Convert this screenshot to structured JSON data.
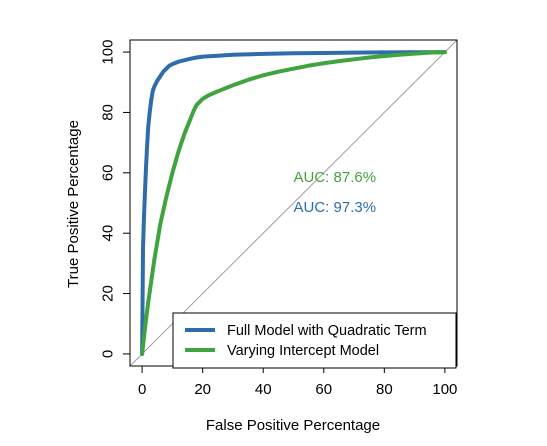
{
  "chart_data": {
    "type": "line",
    "title": "",
    "xlabel": "False Positive Percentage",
    "ylabel": "True Positive Percentage",
    "xlim": [
      -4,
      104
    ],
    "ylim": [
      -4,
      104
    ],
    "xticks": [
      0,
      20,
      40,
      60,
      80,
      100
    ],
    "yticks": [
      0,
      20,
      40,
      60,
      80,
      100
    ],
    "grid": false,
    "legend_position": "bottom-right",
    "reference_line": {
      "x": [
        0,
        100
      ],
      "y": [
        0,
        100
      ],
      "color": "#a0a0a0"
    },
    "series": [
      {
        "name": "Full Model with Quadratic Term",
        "color": "#2e6cab",
        "auc_label": "AUC: 97.3%",
        "auc_pos": [
          50,
          47
        ],
        "x": [
          0,
          0.3,
          0.6,
          1,
          1.3,
          1.6,
          2,
          2.5,
          3,
          3.5,
          4,
          5,
          6,
          7,
          8,
          9,
          10,
          12,
          14,
          16,
          18,
          20,
          25,
          30,
          40,
          50,
          60,
          70,
          80,
          90,
          100
        ],
        "y": [
          0,
          35,
          45,
          55,
          62,
          68,
          75,
          80,
          84,
          87,
          88.5,
          90.5,
          92,
          93.5,
          94.5,
          95.5,
          96,
          96.8,
          97.3,
          97.8,
          98.2,
          98.5,
          98.8,
          99.1,
          99.4,
          99.6,
          99.7,
          99.8,
          99.9,
          99.95,
          100
        ]
      },
      {
        "name": "Varying Intercept Model",
        "color": "#3fa33f",
        "auc_label": "AUC: 87.6%",
        "auc_pos": [
          50,
          57
        ],
        "x": [
          0,
          1,
          2,
          3,
          4,
          5,
          6,
          8,
          10,
          12,
          14,
          16,
          17,
          18,
          20,
          22,
          25,
          30,
          35,
          40,
          45,
          50,
          55,
          60,
          65,
          70,
          75,
          80,
          85,
          90,
          95,
          100
        ],
        "y": [
          0,
          9,
          17,
          24,
          31,
          37,
          43,
          52,
          60,
          67,
          73,
          78,
          80.5,
          82.5,
          84.5,
          85.7,
          87,
          89,
          90.8,
          92.3,
          93.5,
          94.5,
          95.5,
          96.3,
          97,
          97.6,
          98.2,
          98.7,
          99.1,
          99.5,
          99.8,
          100
        ]
      }
    ]
  }
}
